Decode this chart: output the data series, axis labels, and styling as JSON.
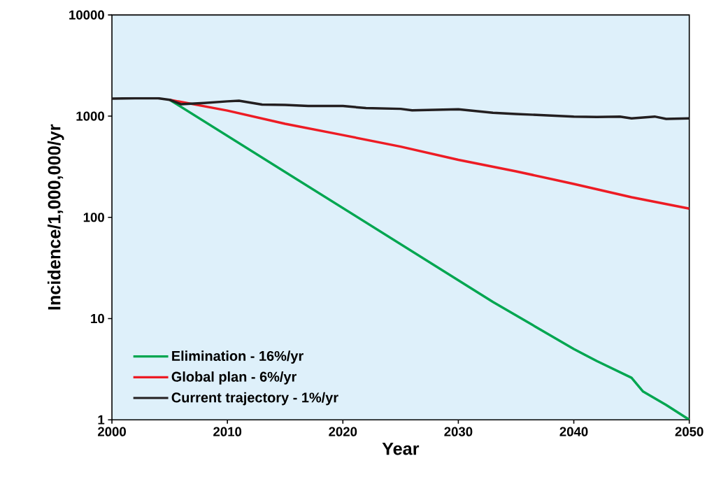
{
  "chart_data": {
    "type": "line",
    "xlabel": "Year",
    "ylabel": "Incidence/1,000,000/yr",
    "log": "y",
    "xlim": [
      2000,
      2050
    ],
    "xticks": [
      2000,
      2010,
      2020,
      2030,
      2040,
      2050
    ],
    "ylim": [
      1,
      10000
    ],
    "yticks": [
      1,
      10,
      100,
      1000,
      10000
    ],
    "grid": false,
    "legend": "bottom left",
    "marker": "none",
    "line_style": "solid",
    "series": [
      {
        "name": "Elimination - 16%/yr",
        "color": "#00a650",
        "x": [
          2005,
          2033,
          2040,
          2042,
          2045,
          2046,
          2048,
          2050
        ],
        "values": [
          1450,
          14.6,
          5,
          3.8,
          2.6,
          1.9,
          1.4,
          1
        ]
      },
      {
        "name": "Global plan - 6%/yr",
        "color": "#ed1c24",
        "x": [
          2005,
          2010,
          2015,
          2020,
          2025,
          2030,
          2035,
          2040,
          2045,
          2050
        ],
        "values": [
          1450,
          1135,
          840,
          650,
          500,
          370,
          285,
          214,
          158,
          122
        ]
      },
      {
        "name": "Current trajectory - 1%/yr",
        "color": "#231f20",
        "x": [
          2000,
          2002,
          2004,
          2005,
          2006,
          2008,
          2010,
          2011,
          2013,
          2015,
          2017,
          2020,
          2022,
          2025,
          2026,
          2030,
          2033,
          2035,
          2040,
          2042,
          2044,
          2045,
          2047,
          2048,
          2050
        ],
        "values": [
          1490,
          1500,
          1500,
          1450,
          1310,
          1350,
          1400,
          1420,
          1300,
          1290,
          1260,
          1260,
          1200,
          1180,
          1140,
          1170,
          1080,
          1050,
          990,
          980,
          990,
          950,
          990,
          940,
          950
        ]
      }
    ]
  }
}
